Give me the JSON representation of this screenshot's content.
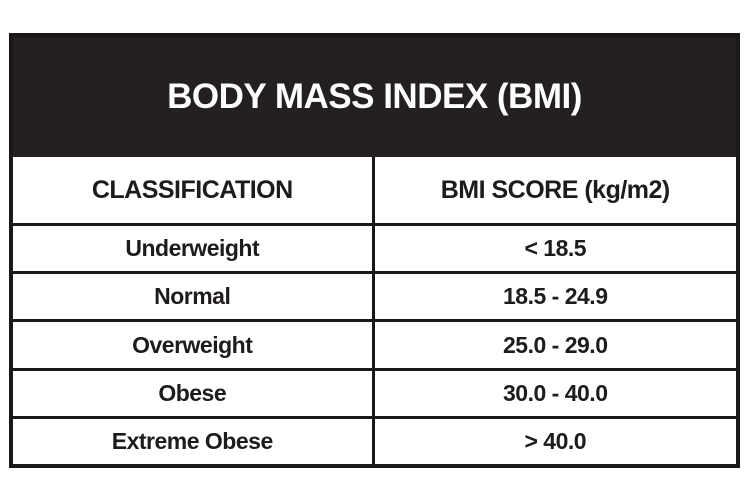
{
  "table": {
    "title": "BODY MASS INDEX (BMI)",
    "columns": [
      "CLASSIFICATION",
      "BMI SCORE (kg/m2)"
    ],
    "rows": [
      {
        "classification": "Underweight",
        "score": "< 18.5"
      },
      {
        "classification": "Normal",
        "score": "18.5 - 24.9"
      },
      {
        "classification": "Overweight",
        "score": "25.0 - 29.0"
      },
      {
        "classification": "Obese",
        "score": "30.0 - 40.0"
      },
      {
        "classification": "Extreme Obese",
        "score": "> 40.0"
      }
    ],
    "colors": {
      "banner_bg": "#242021",
      "banner_text": "#fdfdfd",
      "border": "#1c1819"
    }
  },
  "chart_data": {
    "type": "table",
    "title": "BODY MASS INDEX (BMI)",
    "columns": [
      "CLASSIFICATION",
      "BMI SCORE (kg/m2)"
    ],
    "rows": [
      [
        "Underweight",
        "< 18.5"
      ],
      [
        "Normal",
        "18.5 - 24.9"
      ],
      [
        "Overweight",
        "25.0 - 29.0"
      ],
      [
        "Obese",
        "30.0 - 40.0"
      ],
      [
        "Extreme Obese",
        "> 40.0"
      ]
    ]
  }
}
